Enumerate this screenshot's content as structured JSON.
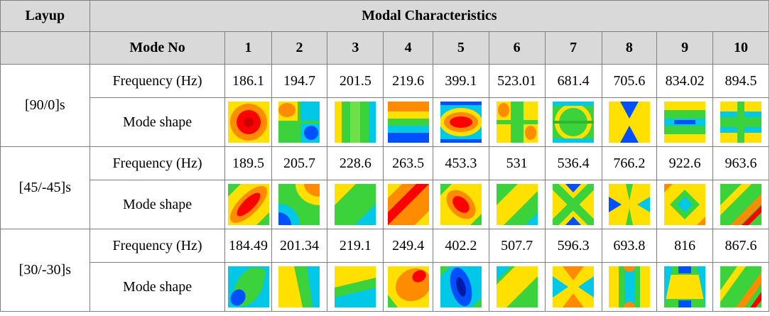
{
  "header": {
    "layup": "Layup",
    "modal_characteristics": "Modal Characteristics",
    "mode_no": "Mode No",
    "modes": [
      "1",
      "2",
      "3",
      "4",
      "5",
      "6",
      "7",
      "8",
      "9",
      "10"
    ]
  },
  "row_labels": {
    "frequency": "Frequency (Hz)",
    "shape": "Mode shape"
  },
  "layups": [
    {
      "name": "[90/0]s",
      "frequencies": [
        "186.1",
        "194.7",
        "201.5",
        "219.6",
        "399.1",
        "523.01",
        "681.4",
        "705.6",
        "834.02",
        "894.5"
      ],
      "shapes": [
        "center-spot",
        "cross-split",
        "vertical-bands",
        "horizontal-band",
        "horizontal-ellipse",
        "grid-2x3",
        "circle-bands",
        "x-saddle",
        "horizontal-stripes",
        "grid-3x2"
      ]
    },
    {
      "name": "[45/-45]s",
      "frequencies": [
        "189.5",
        "205.7",
        "228.6",
        "263.5",
        "453.3",
        "531",
        "536.4",
        "766.2",
        "922.6",
        "963.6"
      ],
      "shapes": [
        "diagonal-ellipse",
        "corner-blob",
        "diagonal-band",
        "diagonal-ridge",
        "tilted-spot",
        "diagonal-split",
        "x-pattern",
        "x-saddle-diag",
        "diamond-center",
        "diagonal-stripes"
      ]
    },
    {
      "name": "[30/-30]s",
      "frequencies": [
        "184.49",
        "201.34",
        "219.1",
        "249.4",
        "402.2",
        "507.7",
        "596.3",
        "693.8",
        "816",
        "867.6"
      ],
      "shapes": [
        "tilted-blue",
        "tilted-split",
        "tilted-bands",
        "warm-blob",
        "blue-ellipse",
        "diagonal-split-30",
        "saddle-30",
        "vertical-saddle",
        "horizontal-saddle",
        "diagonal-stripes-30"
      ]
    }
  ],
  "colors": {
    "header_bg": "#d9d9d9",
    "border": "#7f7f7f",
    "contour_red": "#ff0000",
    "contour_orange": "#ff8c00",
    "contour_yellow": "#ffe000",
    "contour_green": "#3cd23c",
    "contour_cyan": "#00c8e6",
    "contour_blue": "#0050ff"
  }
}
